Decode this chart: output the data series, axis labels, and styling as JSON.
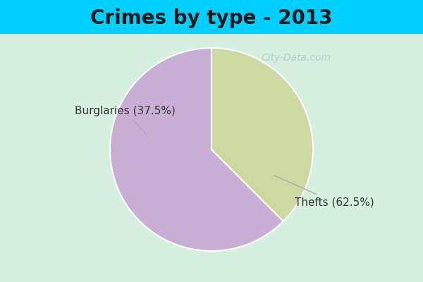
{
  "title": "Crimes by type - 2013",
  "slices": [
    {
      "label": "Thefts",
      "value": 62.5,
      "color": "#c9afd4",
      "pct": "62.5%"
    },
    {
      "label": "Burglaries",
      "value": 37.5,
      "color": "#cdd9a0",
      "pct": "37.5%"
    }
  ],
  "bg_color_top": "#00cfff",
  "bg_color_main": "#d6f0e0",
  "title_fontsize": 20,
  "title_fontweight": "bold",
  "label_fontsize": 11,
  "watermark_text": "City-Data.com",
  "startangle": 90
}
